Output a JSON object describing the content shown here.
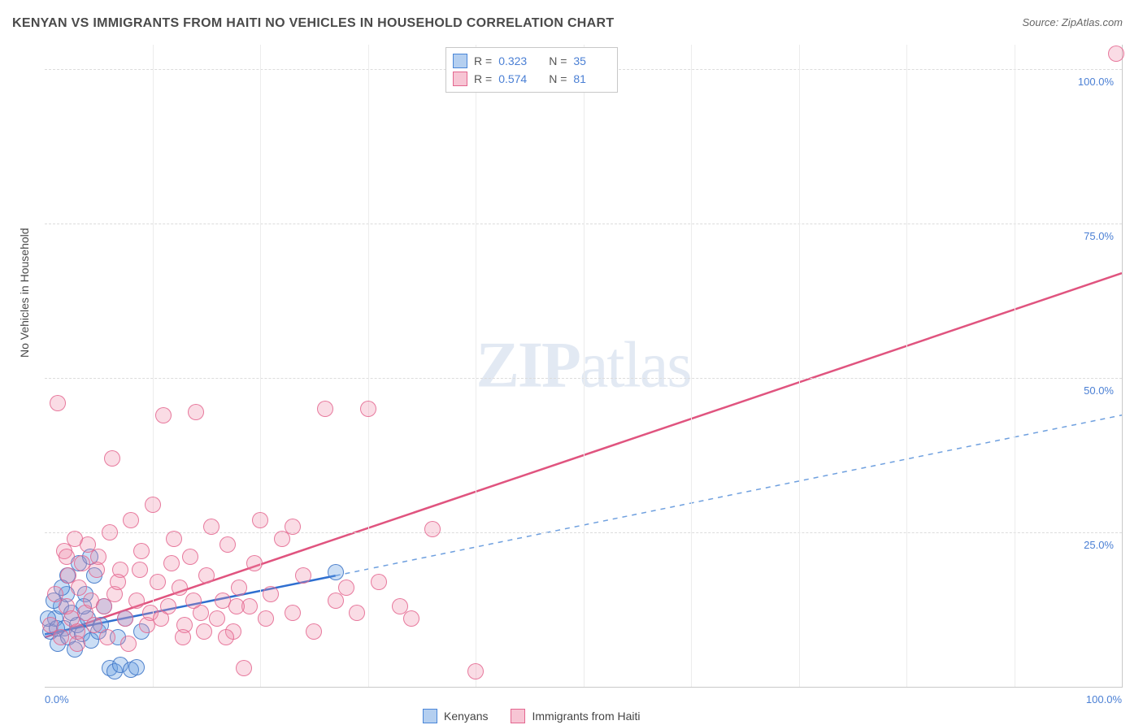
{
  "title": "KENYAN VS IMMIGRANTS FROM HAITI NO VEHICLES IN HOUSEHOLD CORRELATION CHART",
  "source": "Source: ZipAtlas.com",
  "y_axis_label": "No Vehicles in Household",
  "watermark": {
    "bold": "ZIP",
    "rest": "atlas"
  },
  "chart": {
    "type": "scatter",
    "xlim": [
      0,
      100
    ],
    "ylim": [
      0,
      104
    ],
    "x_ticks": [
      0,
      100
    ],
    "x_tick_labels": [
      "0.0%",
      "100.0%"
    ],
    "y_ticks": [
      25,
      50,
      75,
      100
    ],
    "y_tick_labels": [
      "25.0%",
      "50.0%",
      "75.0%",
      "100.0%"
    ],
    "grid_v_positions": [
      10,
      20,
      30,
      40,
      50,
      60,
      70,
      80,
      90
    ],
    "background_color": "#ffffff",
    "grid_color": "#dcdcdc",
    "border_color": "#c9c9c9",
    "marker_radius": 9,
    "series": [
      {
        "name": "Kenyans",
        "color_fill": "rgba(105,160,225,0.35)",
        "color_stroke": "#4a86d8",
        "R": "0.323",
        "N": "35",
        "trend": {
          "style": "solid-then-dashed",
          "solid_color": "#2f6fd0",
          "dashed_color": "#6fa0df",
          "width_solid": 2.5,
          "width_dashed": 1.5,
          "x1": 0,
          "y1": 8.5,
          "x_mid": 27,
          "y_mid": 18,
          "x2": 100,
          "y2": 44
        },
        "points": [
          [
            0.5,
            9
          ],
          [
            1,
            11
          ],
          [
            1.2,
            7
          ],
          [
            1.5,
            13
          ],
          [
            1.8,
            9.5
          ],
          [
            2,
            15
          ],
          [
            2.2,
            8
          ],
          [
            2.5,
            12
          ],
          [
            2.8,
            6
          ],
          [
            3,
            10
          ],
          [
            3.2,
            20
          ],
          [
            3.5,
            8.5
          ],
          [
            3.8,
            15
          ],
          [
            4,
            11
          ],
          [
            4.3,
            7.5
          ],
          [
            4.6,
            18
          ],
          [
            5,
            9
          ],
          [
            5.5,
            13
          ],
          [
            6,
            3
          ],
          [
            6.5,
            2.5
          ],
          [
            7,
            3.5
          ],
          [
            7.5,
            11
          ],
          [
            8,
            2.8
          ],
          [
            8.5,
            3.2
          ],
          [
            9,
            9
          ],
          [
            4.2,
            21
          ],
          [
            27,
            18.5
          ],
          [
            2.1,
            18
          ],
          [
            1.6,
            16
          ],
          [
            0.8,
            14
          ],
          [
            0.3,
            11
          ],
          [
            1.1,
            9.5
          ],
          [
            3.6,
            13
          ],
          [
            5.2,
            10
          ],
          [
            6.8,
            8
          ]
        ]
      },
      {
        "name": "Immigrants from Haiti",
        "color_fill": "rgba(240,140,170,0.3)",
        "color_stroke": "#e4668f",
        "R": "0.574",
        "N": "81",
        "trend": {
          "style": "solid",
          "solid_color": "#e0547f",
          "width_solid": 2.5,
          "x1": 0,
          "y1": 8,
          "x2": 100,
          "y2": 67
        },
        "points": [
          [
            0.5,
            10
          ],
          [
            1,
            15
          ],
          [
            1.2,
            46
          ],
          [
            1.5,
            8
          ],
          [
            1.8,
            22
          ],
          [
            2,
            13
          ],
          [
            2.2,
            18
          ],
          [
            2.5,
            11
          ],
          [
            2.8,
            24
          ],
          [
            3,
            9
          ],
          [
            3.2,
            16
          ],
          [
            3.5,
            20
          ],
          [
            3.8,
            12
          ],
          [
            4,
            23
          ],
          [
            4.3,
            14
          ],
          [
            4.6,
            10
          ],
          [
            5,
            21
          ],
          [
            5.5,
            13
          ],
          [
            6,
            25
          ],
          [
            6.3,
            37
          ],
          [
            6.5,
            15
          ],
          [
            7,
            19
          ],
          [
            7.5,
            11
          ],
          [
            8,
            27
          ],
          [
            8.5,
            14
          ],
          [
            9,
            22
          ],
          [
            9.5,
            10
          ],
          [
            10,
            29.5
          ],
          [
            10.5,
            17
          ],
          [
            11,
            44
          ],
          [
            11.5,
            13
          ],
          [
            12,
            24
          ],
          [
            12.5,
            16
          ],
          [
            13,
            10
          ],
          [
            13.5,
            21
          ],
          [
            14,
            44.5
          ],
          [
            14.5,
            12
          ],
          [
            15,
            18
          ],
          [
            15.5,
            26
          ],
          [
            16,
            11
          ],
          [
            16.5,
            14
          ],
          [
            17,
            23
          ],
          [
            17.5,
            9
          ],
          [
            18,
            16
          ],
          [
            18.5,
            3
          ],
          [
            19,
            13
          ],
          [
            19.5,
            20
          ],
          [
            20,
            27
          ],
          [
            20.5,
            11
          ],
          [
            21,
            15
          ],
          [
            22,
            24
          ],
          [
            23,
            12
          ],
          [
            24,
            18
          ],
          [
            25,
            9
          ],
          [
            26,
            45
          ],
          [
            27,
            14
          ],
          [
            28,
            16
          ],
          [
            29,
            12
          ],
          [
            30,
            45
          ],
          [
            31,
            17
          ],
          [
            33,
            13
          ],
          [
            34,
            11
          ],
          [
            36,
            25.5
          ],
          [
            40,
            2.5
          ],
          [
            23,
            26
          ],
          [
            12.8,
            8
          ],
          [
            7.8,
            7
          ],
          [
            5.8,
            8
          ],
          [
            14.8,
            9
          ],
          [
            9.8,
            12
          ],
          [
            11.8,
            20
          ],
          [
            8.8,
            19
          ],
          [
            6.8,
            17
          ],
          [
            4.8,
            19
          ],
          [
            2.0,
            21
          ],
          [
            13.8,
            14
          ],
          [
            10.8,
            11
          ],
          [
            16.8,
            8
          ],
          [
            17.8,
            13
          ],
          [
            99.5,
            102.5
          ],
          [
            3.0,
            7
          ]
        ]
      }
    ]
  },
  "stat_legend": {
    "rows": [
      {
        "swatch": "blue",
        "r_label": "R =",
        "r_val": "0.323",
        "n_label": "N =",
        "n_val": "35"
      },
      {
        "swatch": "pink",
        "r_label": "R =",
        "r_val": "0.574",
        "n_label": "N =",
        "n_val": "81"
      }
    ]
  },
  "bottom_legend": {
    "items": [
      {
        "swatch": "blue",
        "label": "Kenyans"
      },
      {
        "swatch": "pink",
        "label": "Immigrants from Haiti"
      }
    ]
  }
}
